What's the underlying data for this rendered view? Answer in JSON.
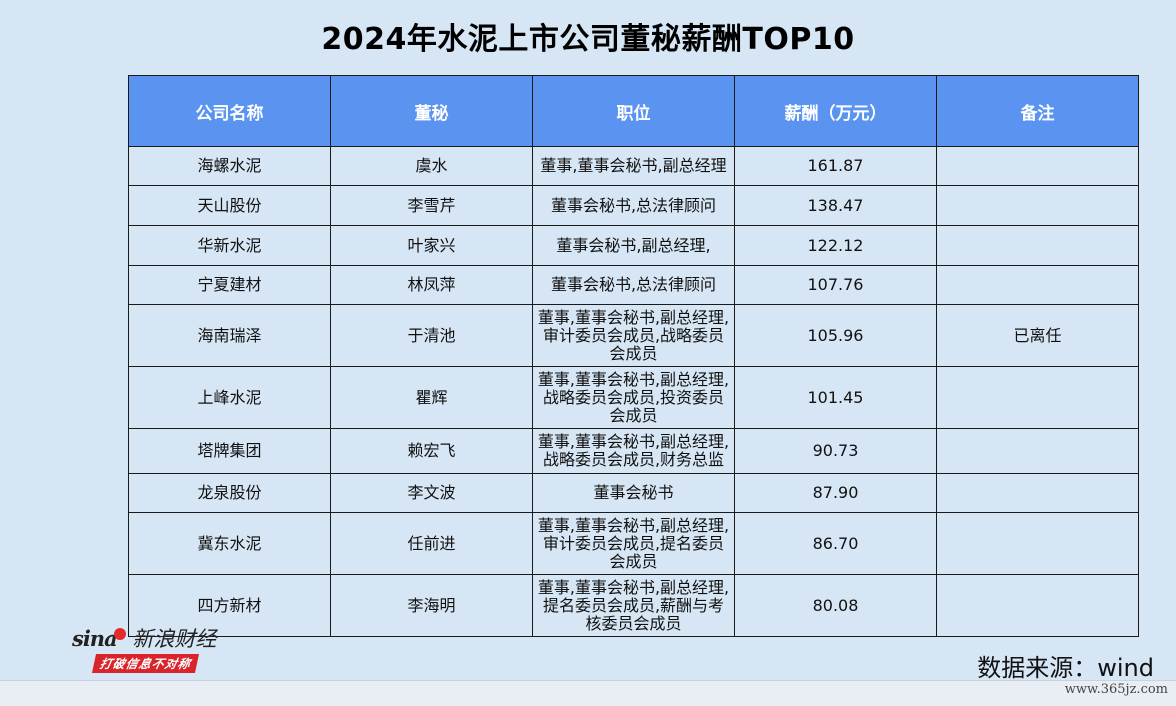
{
  "title": "2024年水泥上市公司董秘薪酬TOP10",
  "table": {
    "headers": [
      "公司名称",
      "董秘",
      "职位",
      "薪酬（万元）",
      "备注"
    ],
    "rows": [
      {
        "company": "海螺水泥",
        "secretary": "虞水",
        "position": "董事,董事会秘书,副总经理",
        "salary": "161.87",
        "note": ""
      },
      {
        "company": "天山股份",
        "secretary": "李雪芹",
        "position": "董事会秘书,总法律顾问",
        "salary": "138.47",
        "note": ""
      },
      {
        "company": "华新水泥",
        "secretary": "叶家兴",
        "position": "董事会秘书,副总经理,",
        "salary": "122.12",
        "note": ""
      },
      {
        "company": "宁夏建材",
        "secretary": "林凤萍",
        "position": "董事会秘书,总法律顾问",
        "salary": "107.76",
        "note": ""
      },
      {
        "company": "海南瑞泽",
        "secretary": "于清池",
        "position": "董事,董事会秘书,副总经理,审计委员会成员,战略委员会成员",
        "salary": "105.96",
        "note": "已离任"
      },
      {
        "company": "上峰水泥",
        "secretary": "瞿辉",
        "position": "董事,董事会秘书,副总经理,战略委员会成员,投资委员会成员",
        "salary": "101.45",
        "note": ""
      },
      {
        "company": "塔牌集团",
        "secretary": "赖宏飞",
        "position": "董事,董事会秘书,副总经理,战略委员会成员,财务总监",
        "salary": "90.73",
        "note": ""
      },
      {
        "company": "龙泉股份",
        "secretary": "李文波",
        "position": "董事会秘书",
        "salary": "87.90",
        "note": ""
      },
      {
        "company": "冀东水泥",
        "secretary": "任前进",
        "position": "董事,董事会秘书,副总经理,审计委员会成员,提名委员会成员",
        "salary": "86.70",
        "note": ""
      },
      {
        "company": "四方新材",
        "secretary": "李海明",
        "position": "董事,董事会秘书,副总经理,提名委员会成员,薪酬与考核委员会成员",
        "salary": "80.08",
        "note": ""
      }
    ]
  },
  "logo": {
    "brand": "sina",
    "brand_cn": "新浪财经",
    "slogan": "打破信息不对称"
  },
  "source": "数据来源：wind",
  "watermark": "www.365jz.com",
  "colors": {
    "header_bg": "#5b93f0",
    "page_bg": "#d7e6f5",
    "logo_red": "#d8242a"
  }
}
